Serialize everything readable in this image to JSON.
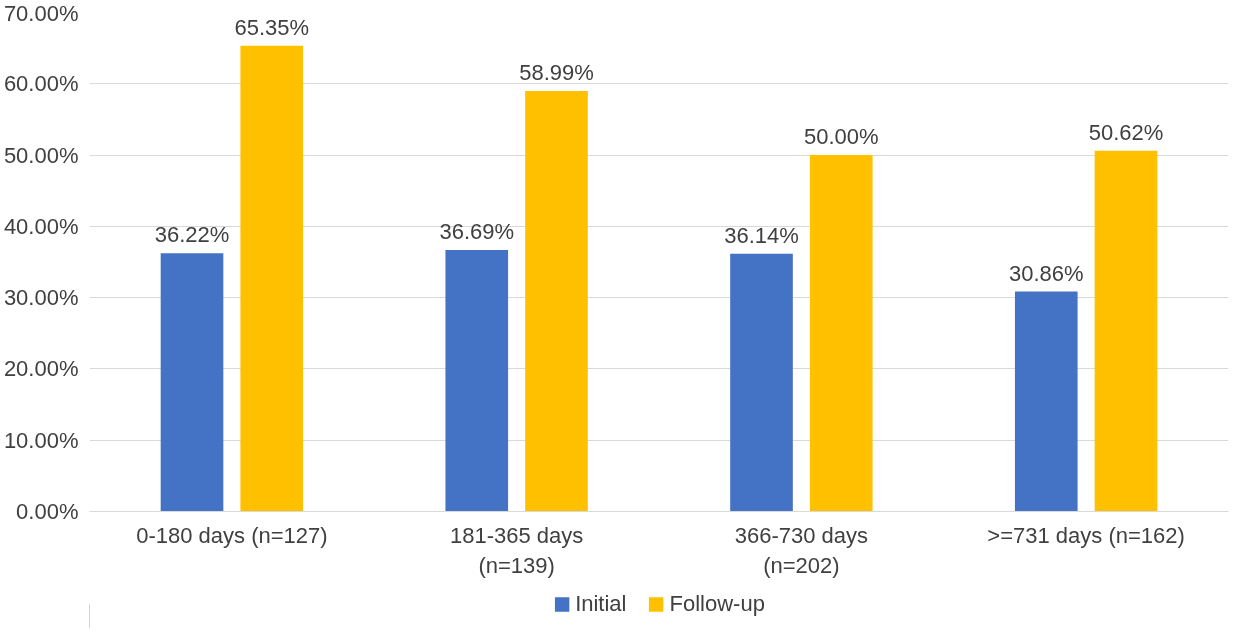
{
  "chart_data": {
    "type": "bar",
    "categories": [
      "0-180 days (n=127)",
      "181-365 days (n=139)",
      "366-730 days (n=202)",
      ">=731 days (n=162)"
    ],
    "series": [
      {
        "name": "Initial",
        "color": "#4472c4",
        "values": [
          36.22,
          36.69,
          36.14,
          30.86
        ],
        "value_labels": [
          "36.22%",
          "36.69%",
          "36.14%",
          "30.86%"
        ]
      },
      {
        "name": "Follow-up",
        "color": "#ffc000",
        "values": [
          65.35,
          58.99,
          50.0,
          50.62
        ],
        "value_labels": [
          "65.35%",
          "58.99%",
          "50.00%",
          "50.62%"
        ]
      }
    ],
    "ylim": [
      0,
      70
    ],
    "yticks": [
      {
        "value": 0,
        "label": "0.00%"
      },
      {
        "value": 10,
        "label": "10.00%"
      },
      {
        "value": 20,
        "label": "20.00%"
      },
      {
        "value": 30,
        "label": "30.00%"
      },
      {
        "value": 40,
        "label": "40.00%"
      },
      {
        "value": 50,
        "label": "50.00%"
      },
      {
        "value": 60,
        "label": "60.00%"
      },
      {
        "value": 70,
        "label": "70.00%"
      }
    ],
    "grid": "y",
    "legend": "bottom"
  }
}
